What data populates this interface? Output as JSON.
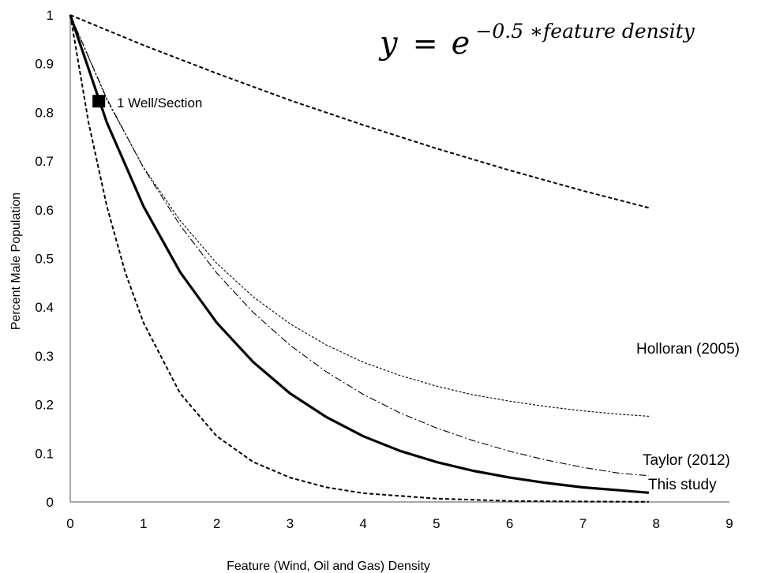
{
  "chart_data": {
    "type": "line",
    "title": "",
    "equation": {
      "lhs": "y",
      "equals": "=",
      "base": "e",
      "exponent": "−0.5 ∗feature density"
    },
    "xlabel": "Feature (Wind, Oil and Gas) Density",
    "ylabel": "Percent Male Population",
    "xlim": [
      0,
      9
    ],
    "ylim": [
      0,
      1
    ],
    "xticks": [
      "0",
      "1",
      "2",
      "3",
      "4",
      "5",
      "6",
      "7",
      "8",
      "9"
    ],
    "yticks": [
      "0",
      "0.1",
      "0.2",
      "0.3",
      "0.4",
      "0.5",
      "0.6",
      "0.7",
      "0.8",
      "0.9",
      "1"
    ],
    "grid": false,
    "series": [
      {
        "name": "This study",
        "style": "solid-bold",
        "x": [
          0,
          0.5,
          1,
          1.5,
          2,
          2.5,
          3,
          3.5,
          4,
          4.5,
          5,
          5.5,
          6,
          6.5,
          7,
          7.5,
          7.9
        ],
        "values": [
          1,
          0.779,
          0.607,
          0.472,
          0.368,
          0.287,
          0.223,
          0.174,
          0.135,
          0.105,
          0.082,
          0.064,
          0.05,
          0.039,
          0.03,
          0.024,
          0.019
        ]
      },
      {
        "name": "Holloran (2005)",
        "style": "fine-dash",
        "x": [
          0,
          0.5,
          1,
          1.5,
          2,
          2.5,
          3,
          3.5,
          4,
          4.5,
          5,
          5.5,
          6,
          6.5,
          7,
          7.5,
          7.9
        ],
        "values": [
          1,
          0.826,
          0.687,
          0.578,
          0.49,
          0.421,
          0.366,
          0.322,
          0.287,
          0.26,
          0.238,
          0.22,
          0.207,
          0.196,
          0.187,
          0.18,
          0.176
        ]
      },
      {
        "name": "Taylor (2012)",
        "style": "dash-dot",
        "x": [
          0,
          0.5,
          1,
          1.5,
          2,
          2.5,
          3,
          3.5,
          4,
          4.5,
          5,
          5.5,
          6,
          6.5,
          7,
          7.5,
          7.9
        ],
        "values": [
          1,
          0.828,
          0.686,
          0.568,
          0.47,
          0.389,
          0.322,
          0.267,
          0.221,
          0.183,
          0.152,
          0.126,
          0.104,
          0.086,
          0.071,
          0.059,
          0.054
        ]
      },
      {
        "name": "",
        "style": "dash",
        "x": [
          0,
          1,
          2,
          3,
          4,
          5,
          6,
          7,
          7.9
        ],
        "values": [
          1,
          0.938,
          0.88,
          0.825,
          0.774,
          0.726,
          0.681,
          0.639,
          0.604
        ]
      },
      {
        "name": "",
        "style": "dash",
        "x": [
          0,
          0.25,
          0.5,
          0.75,
          1,
          1.5,
          2,
          2.5,
          3,
          3.5,
          4,
          5,
          6,
          7,
          7.9
        ],
        "values": [
          1,
          0.779,
          0.607,
          0.472,
          0.368,
          0.223,
          0.135,
          0.082,
          0.05,
          0.03,
          0.018,
          0.007,
          0.002,
          0.001,
          0.0004
        ]
      }
    ],
    "markers": [
      {
        "label": "1 Well/Section",
        "x": 0.39,
        "y": 0.823,
        "shape": "square"
      }
    ]
  }
}
